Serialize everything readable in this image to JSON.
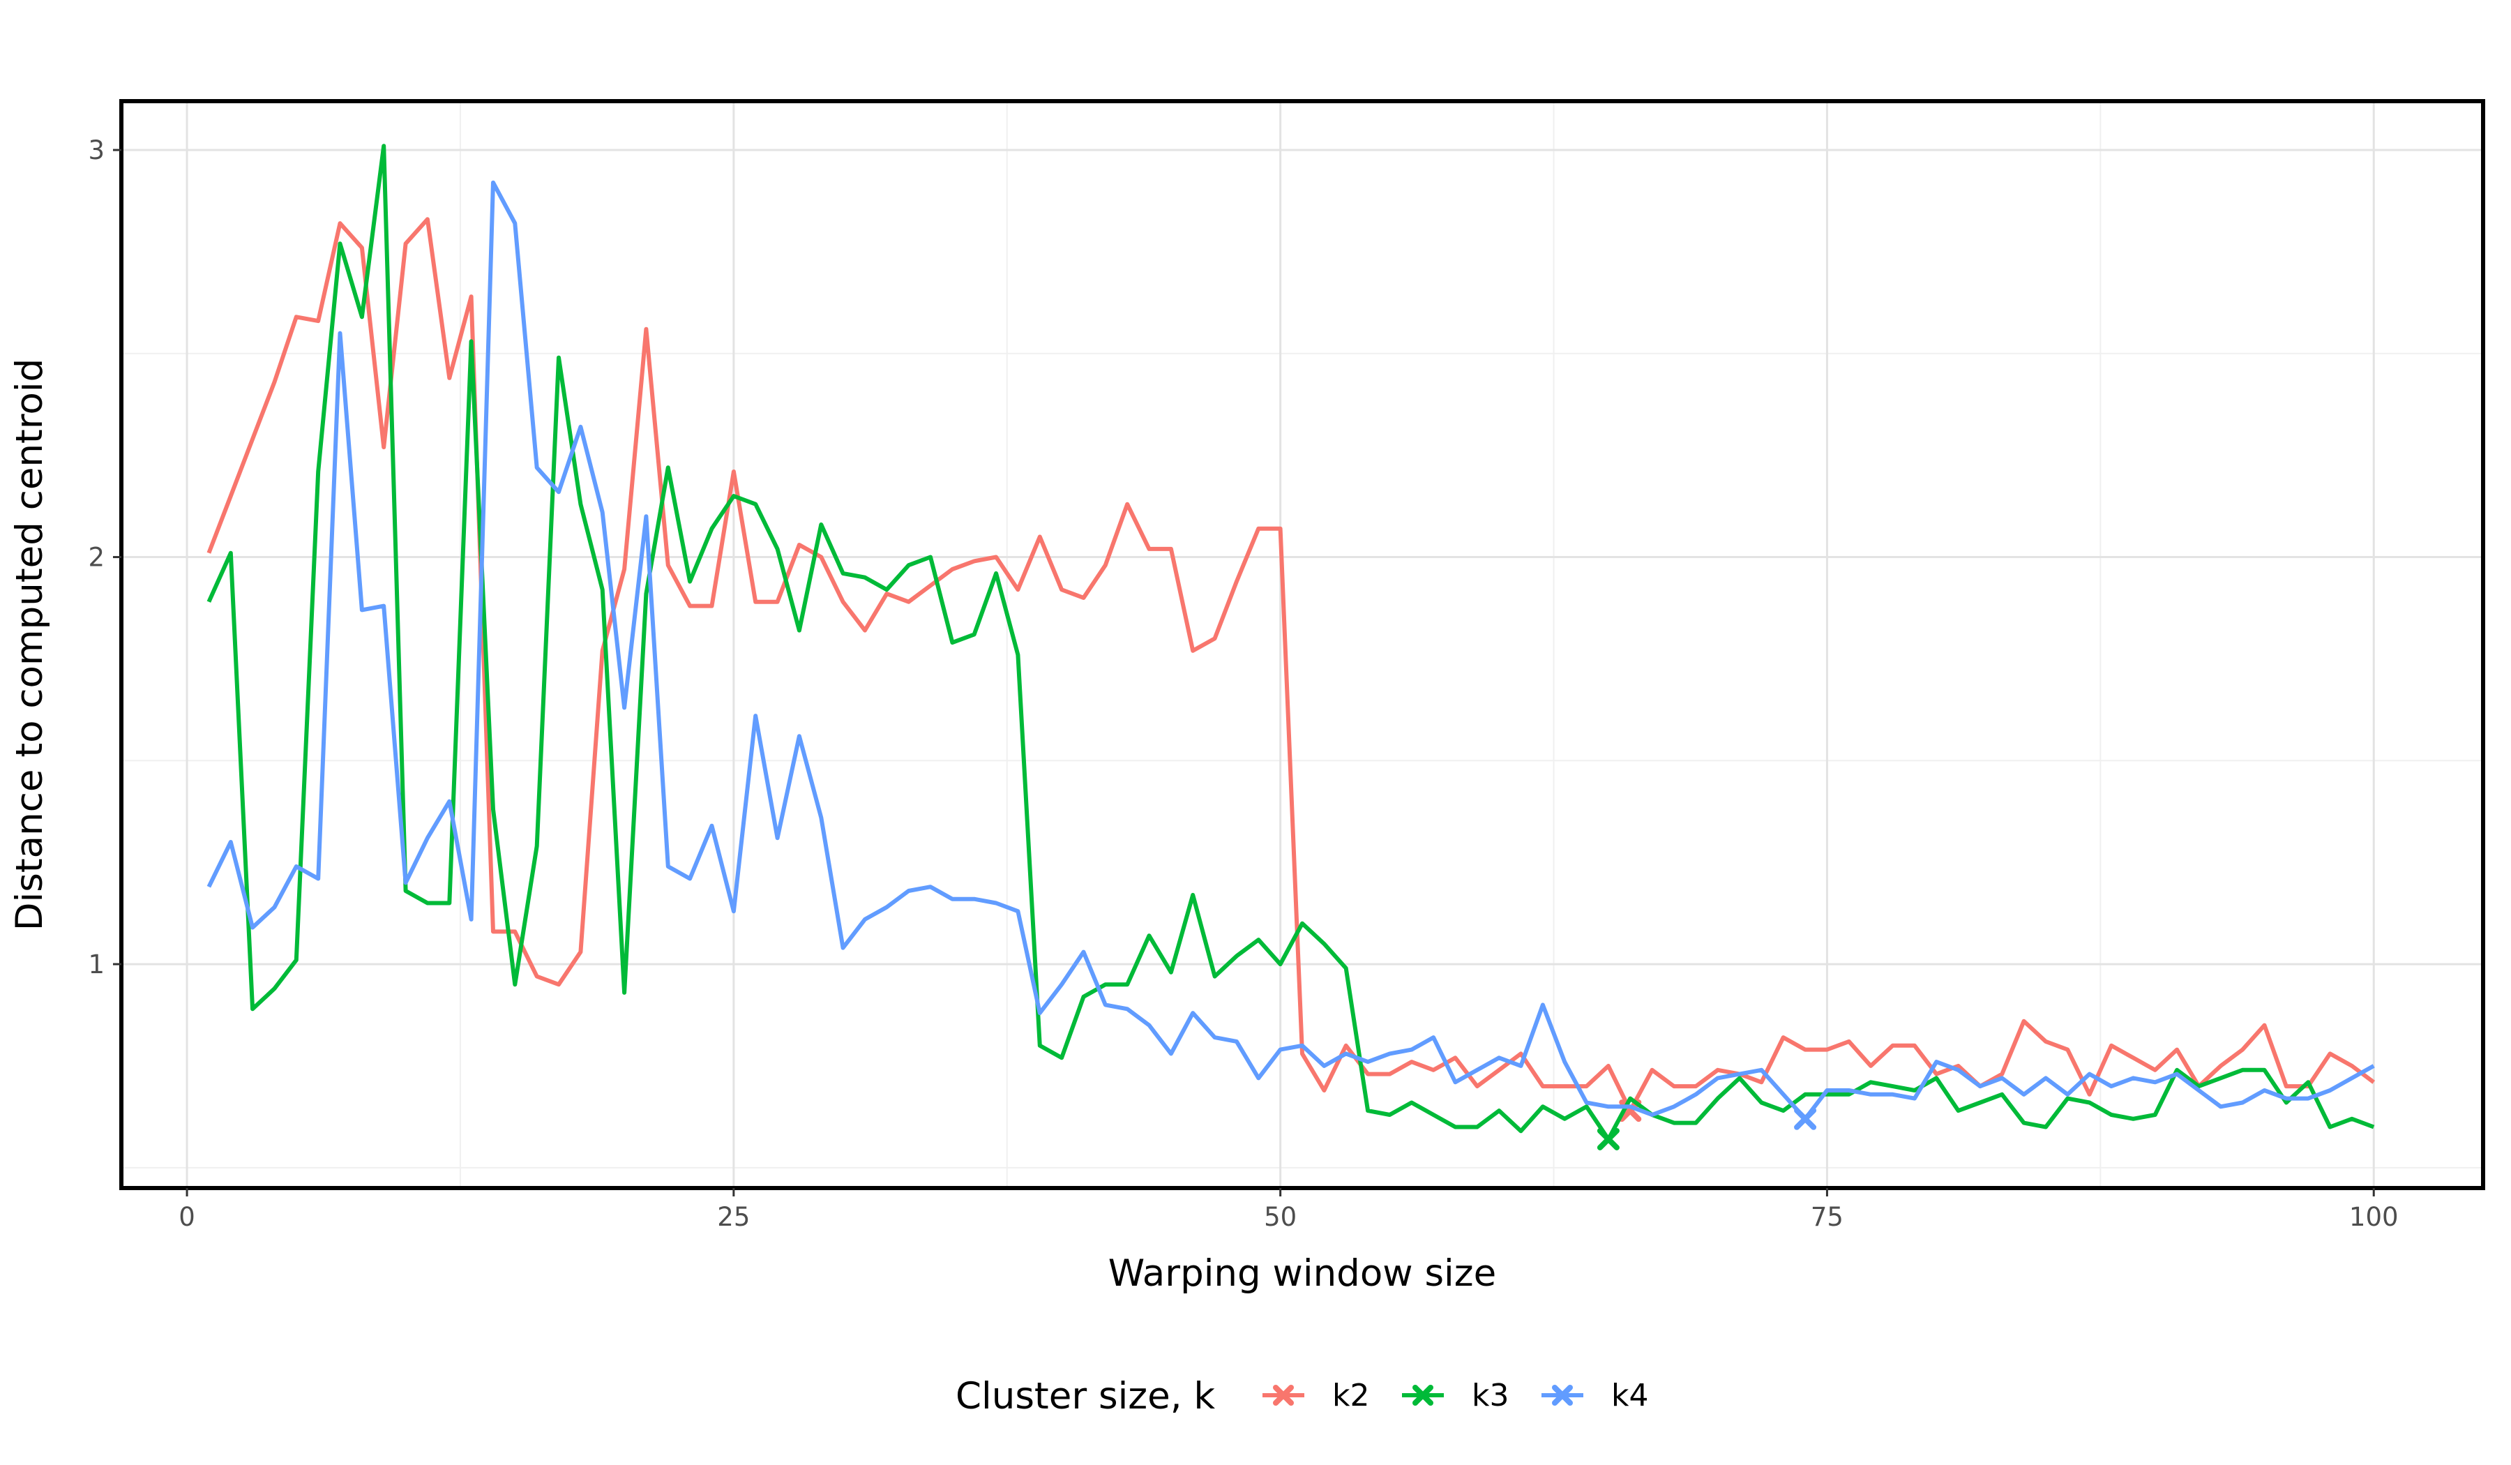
{
  "chart_data": {
    "type": "line",
    "xlabel": "Warping window size",
    "ylabel": "Distance to computed centroid",
    "xlim": [
      -3,
      105
    ],
    "ylim": [
      0.45,
      3.12
    ],
    "x_ticks": [
      0,
      25,
      50,
      75,
      100
    ],
    "x_tick_labels": [
      "0",
      "25",
      "50",
      "75",
      "100"
    ],
    "x_minor_ticks": [
      12.5,
      37.5,
      62.5,
      87.5
    ],
    "y_ticks": [
      1,
      2,
      3
    ],
    "y_tick_labels": [
      "1",
      "2",
      "3"
    ],
    "y_minor_ticks": [
      0.5,
      1.5,
      2.5
    ],
    "grid": true,
    "legend": {
      "title": "Cluster size, k",
      "position": "bottom"
    },
    "marker_note": "x marker at the minimum of each series",
    "x": [
      1,
      2,
      3,
      4,
      5,
      6,
      7,
      8,
      9,
      10,
      11,
      12,
      13,
      14,
      15,
      16,
      17,
      18,
      19,
      20,
      21,
      22,
      23,
      24,
      25,
      26,
      27,
      28,
      29,
      30,
      31,
      32,
      33,
      34,
      35,
      36,
      37,
      38,
      39,
      40,
      41,
      42,
      43,
      44,
      45,
      46,
      47,
      48,
      49,
      50,
      51,
      52,
      53,
      54,
      55,
      56,
      57,
      58,
      59,
      60,
      61,
      62,
      63,
      64,
      65,
      66,
      67,
      68,
      69,
      70,
      71,
      72,
      73,
      74,
      75,
      76,
      77,
      78,
      79,
      80,
      81,
      82,
      83,
      84,
      85,
      86,
      87,
      88,
      89,
      90,
      91,
      92,
      93,
      94,
      95,
      96,
      97,
      98,
      99,
      100
    ],
    "series": [
      {
        "name": "k2",
        "color": "#F8766D",
        "min_x": 66,
        "min_y": 0.64,
        "values": [
          2.01,
          2.15,
          2.29,
          2.43,
          2.59,
          2.58,
          2.82,
          2.76,
          2.27,
          2.77,
          2.83,
          2.44,
          2.64,
          1.08,
          1.08,
          0.97,
          0.95,
          1.03,
          1.77,
          1.97,
          2.56,
          1.98,
          1.88,
          1.88,
          2.21,
          1.89,
          1.89,
          2.03,
          2.0,
          1.89,
          1.82,
          1.91,
          1.89,
          1.93,
          1.97,
          1.99,
          2.0,
          1.92,
          2.05,
          1.92,
          1.9,
          1.98,
          2.13,
          2.02,
          2.02,
          1.77,
          1.8,
          1.94,
          2.07,
          2.07,
          0.78,
          0.69,
          0.8,
          0.73,
          0.73,
          0.76,
          0.74,
          0.77,
          0.7,
          0.74,
          0.78,
          0.7,
          0.7,
          0.7,
          0.75,
          0.64,
          0.74,
          0.7,
          0.7,
          0.74,
          0.73,
          0.71,
          0.82,
          0.79,
          0.79,
          0.81,
          0.75,
          0.8,
          0.8,
          0.73,
          0.75,
          0.7,
          0.73,
          0.86,
          0.81,
          0.79,
          0.68,
          0.8,
          0.77,
          0.74,
          0.79,
          0.7,
          0.75,
          0.79,
          0.85,
          0.7,
          0.7,
          0.78,
          0.75,
          0.71
        ]
      },
      {
        "name": "k3",
        "color": "#00BA38",
        "min_x": 65,
        "min_y": 0.57,
        "values": [
          1.89,
          2.01,
          0.89,
          0.94,
          1.01,
          2.21,
          2.77,
          2.59,
          3.01,
          1.18,
          1.15,
          1.15,
          2.53,
          1.38,
          0.95,
          1.29,
          2.49,
          2.13,
          1.92,
          0.93,
          1.91,
          2.22,
          1.94,
          2.07,
          2.15,
          2.13,
          2.02,
          1.82,
          2.08,
          1.96,
          1.95,
          1.92,
          1.98,
          2.0,
          1.79,
          1.81,
          1.96,
          1.76,
          0.8,
          0.77,
          0.92,
          0.95,
          0.95,
          1.07,
          0.98,
          1.17,
          0.97,
          1.02,
          1.06,
          1.0,
          1.1,
          1.05,
          0.99,
          0.64,
          0.63,
          0.66,
          0.63,
          0.6,
          0.6,
          0.64,
          0.59,
          0.65,
          0.62,
          0.65,
          0.57,
          0.67,
          0.63,
          0.61,
          0.61,
          0.67,
          0.72,
          0.66,
          0.64,
          0.68,
          0.68,
          0.68,
          0.71,
          0.7,
          0.69,
          0.72,
          0.64,
          0.66,
          0.68,
          0.61,
          0.6,
          0.67,
          0.66,
          0.63,
          0.62,
          0.63,
          0.74,
          0.7,
          0.72,
          0.74,
          0.74,
          0.66,
          0.71,
          0.6,
          0.62,
          0.6
        ]
      },
      {
        "name": "k4",
        "color": "#619CFF",
        "min_x": 74,
        "min_y": 0.62,
        "values": [
          1.19,
          1.3,
          1.09,
          1.14,
          1.24,
          1.21,
          2.55,
          1.87,
          1.88,
          1.2,
          1.31,
          1.4,
          1.11,
          2.92,
          2.82,
          2.22,
          2.16,
          2.32,
          2.11,
          1.63,
          2.1,
          1.24,
          1.21,
          1.34,
          1.13,
          1.61,
          1.31,
          1.56,
          1.36,
          1.04,
          1.11,
          1.14,
          1.18,
          1.19,
          1.16,
          1.16,
          1.15,
          1.13,
          0.88,
          0.95,
          1.03,
          0.9,
          0.89,
          0.85,
          0.78,
          0.88,
          0.82,
          0.81,
          0.72,
          0.79,
          0.8,
          0.75,
          0.78,
          0.76,
          0.78,
          0.79,
          0.82,
          0.71,
          0.74,
          0.77,
          0.75,
          0.9,
          0.76,
          0.66,
          0.65,
          0.65,
          0.63,
          0.65,
          0.68,
          0.72,
          0.73,
          0.74,
          0.68,
          0.62,
          0.69,
          0.69,
          0.68,
          0.68,
          0.67,
          0.76,
          0.74,
          0.7,
          0.72,
          0.68,
          0.72,
          0.68,
          0.73,
          0.7,
          0.72,
          0.71,
          0.73,
          0.69,
          0.65,
          0.66,
          0.69,
          0.67,
          0.67,
          0.69,
          0.72,
          0.75
        ]
      }
    ]
  }
}
